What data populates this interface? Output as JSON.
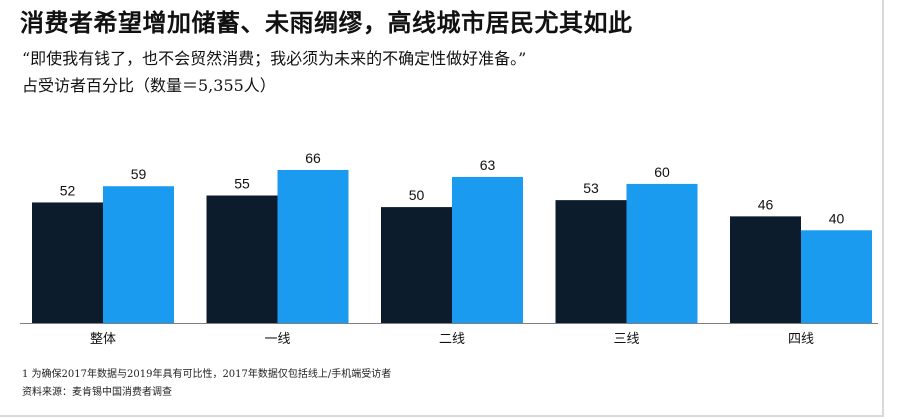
{
  "title": "消费者希望增加储蓄、未雨绸缪，高线城市居民尤其如此",
  "quote": "“即使我有钱了，也不会贸然消费；我必须为未来的不确定性做好准备。”",
  "subtitle": "占受访者百分比（数量＝5,355人）",
  "footnote": "1 为确保2017年数据与2019年具有可比性，2017年数据仅包括线上/手机端受访者",
  "source": "资料来源：麦肯锡中国消费者调查",
  "colors": {
    "dark": "#0c1c2c",
    "light": "#1a9bef"
  },
  "chart_data": {
    "type": "bar",
    "categories": [
      "整体",
      "一线",
      "二线",
      "三线",
      "四线"
    ],
    "series": [
      {
        "values": [
          52,
          55,
          50,
          53,
          46
        ]
      },
      {
        "values": [
          59,
          66,
          63,
          60,
          40
        ]
      }
    ],
    "ylim": [
      0,
      66
    ],
    "data_labels": true,
    "grid": false
  }
}
